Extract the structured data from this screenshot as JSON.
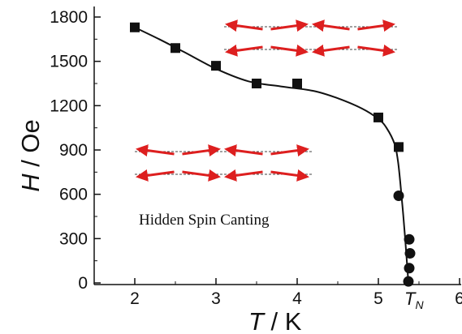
{
  "chart_data": {
    "type": "scatter",
    "title": "",
    "xlabel_var": "T",
    "xlabel_unit": " / K",
    "ylabel_var": "H",
    "ylabel_unit": " / Oe",
    "xlim": [
      1.55,
      6.0
    ],
    "ylim": [
      0,
      1860
    ],
    "x_ticks": [
      2,
      3,
      4,
      5,
      6
    ],
    "y_ticks": [
      0,
      300,
      600,
      900,
      1200,
      1500,
      1800
    ],
    "tn_label": "T",
    "tn_subscript": "N",
    "tn_x": 5.38,
    "annotation": "Hidden Spin Canting",
    "series": [
      {
        "marker": "square",
        "x": [
          2.0,
          2.5,
          3.0,
          3.5,
          4.0,
          5.0,
          5.25
        ],
        "y": [
          1730,
          1590,
          1470,
          1350,
          1350,
          1120,
          920
        ]
      },
      {
        "marker": "circle",
        "x": [
          5.25,
          5.38,
          5.39,
          5.38,
          5.37
        ],
        "y": [
          590,
          295,
          200,
          100,
          10
        ]
      }
    ],
    "fit_curve": {
      "x": [
        2.0,
        2.3,
        2.6,
        3.0,
        3.4,
        3.8,
        4.2,
        4.5,
        4.8,
        5.0,
        5.1,
        5.2,
        5.24,
        5.27,
        5.3,
        5.33,
        5.37
      ],
      "y": [
        1730,
        1650,
        1565,
        1450,
        1365,
        1330,
        1300,
        1250,
        1180,
        1110,
        1050,
        940,
        830,
        680,
        500,
        300,
        0
      ]
    },
    "colors": {
      "arrow": "#dd1f1f",
      "axis": "#111111",
      "marker": "#111111"
    }
  },
  "inset_upper": {
    "rows": [
      [
        "left",
        "right",
        "left",
        "right"
      ],
      [
        "left",
        "right",
        "left",
        "right"
      ]
    ]
  },
  "inset_lower": {
    "rows": [
      [
        "left",
        "right",
        "left",
        "right"
      ],
      [
        "left",
        "right",
        "left",
        "right"
      ]
    ]
  }
}
